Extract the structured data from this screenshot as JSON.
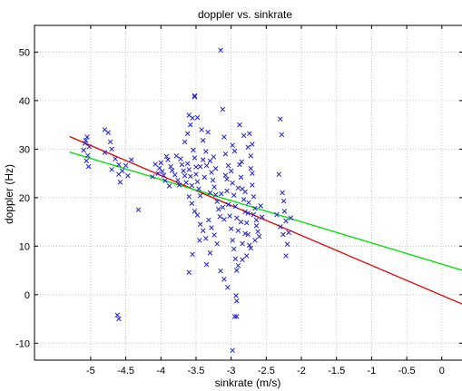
{
  "chart_data": {
    "type": "scatter",
    "title": "doppler vs. sinkrate",
    "xlabel": "sinkrate (m/s)",
    "ylabel": "doppler (Hz)",
    "xlim": [
      -5.8,
      0.3
    ],
    "ylim": [
      -13.5,
      55.5
    ],
    "xticks": [
      -5,
      -4.5,
      -4,
      -3.5,
      -3,
      -2.5,
      -2,
      -1.5,
      -1,
      -0.5,
      0
    ],
    "xtick_labels": [
      "-5",
      "-4.5",
      "-4",
      "-3.5",
      "-3",
      "-2.5",
      "-2",
      "-1.5",
      "-1",
      "-0.5",
      "0"
    ],
    "yticks": [
      -10,
      0,
      10,
      20,
      30,
      40,
      50
    ],
    "ytick_labels": [
      "-10",
      "0",
      "10",
      "20",
      "30",
      "40",
      "50"
    ],
    "grid": true,
    "marker": "x",
    "colors": {
      "points": "#2222cc",
      "fit_red": "#e00000",
      "fit_green": "#00dd00",
      "grid": "#bfbfbf"
    },
    "series": [
      {
        "type": "scatter",
        "points": [
          [
            -5.05,
            32.5
          ],
          [
            -5.07,
            31.8
          ],
          [
            -5.02,
            30.5
          ],
          [
            -5.1,
            29.8
          ],
          [
            -5.04,
            28.7
          ],
          [
            -5.06,
            27.6
          ],
          [
            -5.03,
            26.4
          ],
          [
            -5.08,
            31.2
          ],
          [
            -4.8,
            34.0
          ],
          [
            -4.75,
            33.4
          ],
          [
            -4.72,
            31.5
          ],
          [
            -4.7,
            30.0
          ],
          [
            -4.8,
            29.3
          ],
          [
            -4.65,
            28.0
          ],
          [
            -4.6,
            26.8
          ],
          [
            -4.55,
            25.5
          ],
          [
            -4.7,
            25.8
          ],
          [
            -4.6,
            24.8
          ],
          [
            -4.58,
            23.2
          ],
          [
            -4.5,
            26.6
          ],
          [
            -4.42,
            27.8
          ],
          [
            -4.47,
            24.5
          ],
          [
            -4.32,
            17.5
          ],
          [
            -4.62,
            -4.2
          ],
          [
            -4.6,
            -5.0
          ],
          [
            -4.0,
            27.2
          ],
          [
            -4.02,
            26.1
          ],
          [
            -3.98,
            25.4
          ],
          [
            -3.96,
            24.6
          ],
          [
            -3.94,
            23.5
          ],
          [
            -3.9,
            27.8
          ],
          [
            -3.86,
            26.4
          ],
          [
            -3.84,
            25.6
          ],
          [
            -3.8,
            24.7
          ],
          [
            -3.76,
            23.6
          ],
          [
            -3.72,
            28.0
          ],
          [
            -3.7,
            26.8
          ],
          [
            -3.68,
            25.5
          ],
          [
            -3.66,
            24.5
          ],
          [
            -3.64,
            23.1
          ],
          [
            -3.62,
            27.0
          ],
          [
            -3.6,
            25.8
          ],
          [
            -3.58,
            24.4
          ],
          [
            -3.56,
            22.5
          ],
          [
            -3.54,
            29.8
          ],
          [
            -3.52,
            28.2
          ],
          [
            -3.5,
            26.3
          ],
          [
            -3.5,
            24.8
          ],
          [
            -3.48,
            23.3
          ],
          [
            -3.46,
            21.8
          ],
          [
            -3.44,
            20.4
          ],
          [
            -3.92,
            28.5
          ],
          [
            -3.88,
            22.4
          ],
          [
            -3.78,
            28.6
          ],
          [
            -3.74,
            22.6
          ],
          [
            -4.04,
            25.0
          ],
          [
            -4.08,
            26.9
          ],
          [
            -4.12,
            24.3
          ],
          [
            -3.66,
            31.5
          ],
          [
            -3.62,
            33.2
          ],
          [
            -3.58,
            35.0
          ],
          [
            -3.6,
            37.0
          ],
          [
            -3.55,
            36.4
          ],
          [
            -3.52,
            41.0
          ],
          [
            -3.52,
            40.8
          ],
          [
            -3.48,
            36.5
          ],
          [
            -3.42,
            34.0
          ],
          [
            -3.4,
            31.8
          ],
          [
            -3.36,
            29.5
          ],
          [
            -3.33,
            33.5
          ],
          [
            -3.3,
            27.6
          ],
          [
            -3.28,
            25.2
          ],
          [
            -3.26,
            23.6
          ],
          [
            -3.24,
            22.2
          ],
          [
            -3.22,
            20.6
          ],
          [
            -3.2,
            19.2
          ],
          [
            -3.18,
            17.6
          ],
          [
            -3.16,
            16.1
          ],
          [
            -3.6,
            20.2
          ],
          [
            -3.56,
            18.8
          ],
          [
            -3.52,
            17.2
          ],
          [
            -3.48,
            16.4
          ],
          [
            -3.44,
            14.5
          ],
          [
            -3.4,
            13.2
          ],
          [
            -3.36,
            11.6
          ],
          [
            -3.32,
            15.4
          ],
          [
            -3.28,
            13.8
          ],
          [
            -3.24,
            12.3
          ],
          [
            -3.2,
            10.5
          ],
          [
            -3.55,
            8.3
          ],
          [
            -3.6,
            4.6
          ],
          [
            -3.45,
            11.2
          ],
          [
            -3.35,
            6.2
          ],
          [
            -3.3,
            8.6
          ],
          [
            -3.15,
            4.9
          ],
          [
            -3.1,
            3.2
          ],
          [
            -3.05,
            1.5
          ],
          [
            -3.12,
            38.2
          ],
          [
            -3.08,
            24.6
          ],
          [
            -3.06,
            21.4
          ],
          [
            -3.04,
            18.6
          ],
          [
            -3.02,
            16.2
          ],
          [
            -3.0,
            13.6
          ],
          [
            -2.98,
            11.2
          ],
          [
            -2.96,
            9.4
          ],
          [
            -2.94,
            7.4
          ],
          [
            -2.92,
            5.0
          ],
          [
            -3.0,
            25.5
          ],
          [
            -2.98,
            23.0
          ],
          [
            -2.96,
            20.5
          ],
          [
            -2.94,
            18.2
          ],
          [
            -2.92,
            15.8
          ],
          [
            -2.9,
            13.2
          ],
          [
            -2.88,
            26.8
          ],
          [
            -2.86,
            24.2
          ],
          [
            -2.84,
            21.8
          ],
          [
            -2.82,
            19.6
          ],
          [
            -2.8,
            17.1
          ],
          [
            -2.78,
            14.8
          ],
          [
            -2.76,
            12.4
          ],
          [
            -2.74,
            10.2
          ],
          [
            -2.72,
            28.6
          ],
          [
            -2.7,
            31.0
          ],
          [
            -2.74,
            33.2
          ],
          [
            -2.76,
            30.4
          ],
          [
            -2.72,
            26.0
          ],
          [
            -2.7,
            22.6
          ],
          [
            -2.68,
            20.2
          ],
          [
            -2.66,
            17.8
          ],
          [
            -2.64,
            15.4
          ],
          [
            -2.62,
            13.0
          ],
          [
            -2.66,
            11.2
          ],
          [
            -2.72,
            9.6
          ],
          [
            -2.78,
            8.0
          ],
          [
            -2.84,
            7.2
          ],
          [
            -2.9,
            22.0
          ],
          [
            -2.95,
            29.6
          ],
          [
            -2.85,
            27.4
          ],
          [
            -2.82,
            32.8
          ],
          [
            -2.9,
            6.0
          ],
          [
            -2.93,
            -0.2
          ],
          [
            -2.92,
            -1.3
          ],
          [
            -2.95,
            -4.5
          ],
          [
            -2.92,
            -4.5
          ],
          [
            -2.98,
            -11.5
          ],
          [
            -3.15,
            50.4
          ],
          [
            -2.8,
            21.2
          ],
          [
            -2.75,
            19.0
          ],
          [
            -2.68,
            16.5
          ],
          [
            -2.64,
            14.2
          ],
          [
            -2.6,
            12.0
          ],
          [
            -2.58,
            18.3
          ],
          [
            -2.56,
            16.0
          ],
          [
            -2.7,
            25.0
          ],
          [
            -3.1,
            32.5
          ],
          [
            -3.08,
            29.0
          ],
          [
            -2.88,
            35.0
          ],
          [
            -2.98,
            30.8
          ],
          [
            -3.25,
            28.4
          ],
          [
            -3.35,
            26.6
          ],
          [
            -3.38,
            24.2
          ],
          [
            -3.3,
            21.0
          ],
          [
            -3.22,
            26.0
          ],
          [
            -2.3,
            36.2
          ],
          [
            -2.28,
            33.0
          ],
          [
            -2.32,
            24.8
          ],
          [
            -2.27,
            21.0
          ],
          [
            -2.25,
            19.3
          ],
          [
            -2.24,
            17.2
          ],
          [
            -2.22,
            15.2
          ],
          [
            -2.3,
            14.0
          ],
          [
            -2.26,
            12.4
          ],
          [
            -2.18,
            12.8
          ],
          [
            -2.2,
            10.4
          ],
          [
            -2.22,
            8.0
          ],
          [
            -2.15,
            15.8
          ],
          [
            -2.35,
            16.5
          ],
          [
            -3.44,
            26.4
          ],
          [
            -3.4,
            27.8
          ],
          [
            -3.14,
            20.8
          ],
          [
            -3.12,
            18.0
          ],
          [
            -3.1,
            15.5
          ],
          [
            -3.06,
            23.8
          ],
          [
            -3.04,
            26.6
          ],
          [
            -2.84,
            10.5
          ],
          [
            -2.8,
            12.6
          ],
          [
            -2.86,
            15.0
          ],
          [
            -2.76,
            16.8
          ]
        ]
      },
      {
        "name": "",
        "type": "line",
        "color": "#e00000",
        "points": [
          [
            -5.3,
            32.6
          ],
          [
            0.3,
            -2.0
          ]
        ]
      },
      {
        "name": "",
        "type": "line",
        "color": "#00dd00",
        "points": [
          [
            -5.3,
            29.4
          ],
          [
            0.3,
            5.0
          ]
        ]
      }
    ]
  }
}
